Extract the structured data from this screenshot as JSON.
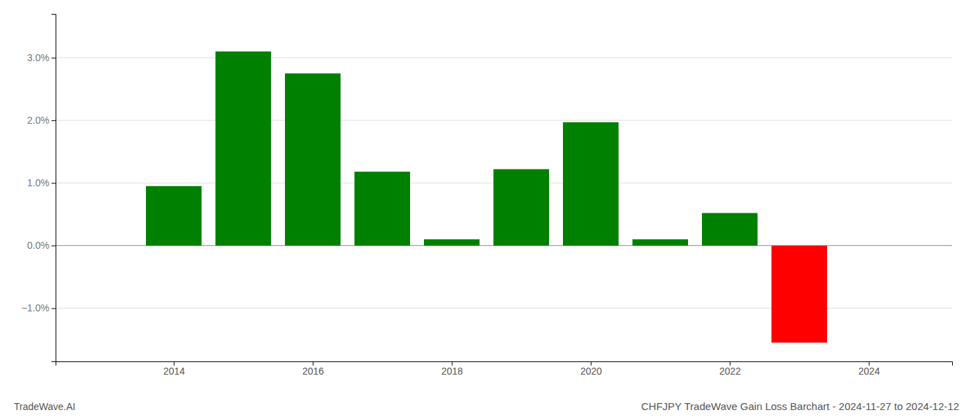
{
  "chart_data": {
    "type": "bar",
    "title": "CHFJPY TradeWave Gain Loss Barchart - 2024-11-27 to 2024-12-12",
    "annotations": [
      "TradeWave.AI"
    ],
    "x": [
      2014,
      2015,
      2016,
      2017,
      2018,
      2019,
      2020,
      2021,
      2022,
      2023
    ],
    "values": [
      0.0095,
      0.031,
      0.0275,
      0.0118,
      0.001,
      0.0122,
      0.0197,
      0.001,
      0.0052,
      -0.0155
    ],
    "colors": [
      "#008000",
      "#008000",
      "#008000",
      "#008000",
      "#008000",
      "#008000",
      "#008000",
      "#008000",
      "#008000",
      "#ff0000"
    ],
    "xlim": [
      2012.3,
      2025.2
    ],
    "xticks": [
      2014,
      2016,
      2018,
      2020,
      2022,
      2024
    ],
    "ylim": [
      -0.0185,
      0.037
    ],
    "yticks": [
      {
        "value": -0.01,
        "label": "−1.0%"
      },
      {
        "value": 0.0,
        "label": "0.0%"
      },
      {
        "value": 0.01,
        "label": "1.0%"
      },
      {
        "value": 0.02,
        "label": "2.0%"
      },
      {
        "value": 0.03,
        "label": "3.0%"
      }
    ],
    "grid": true
  }
}
